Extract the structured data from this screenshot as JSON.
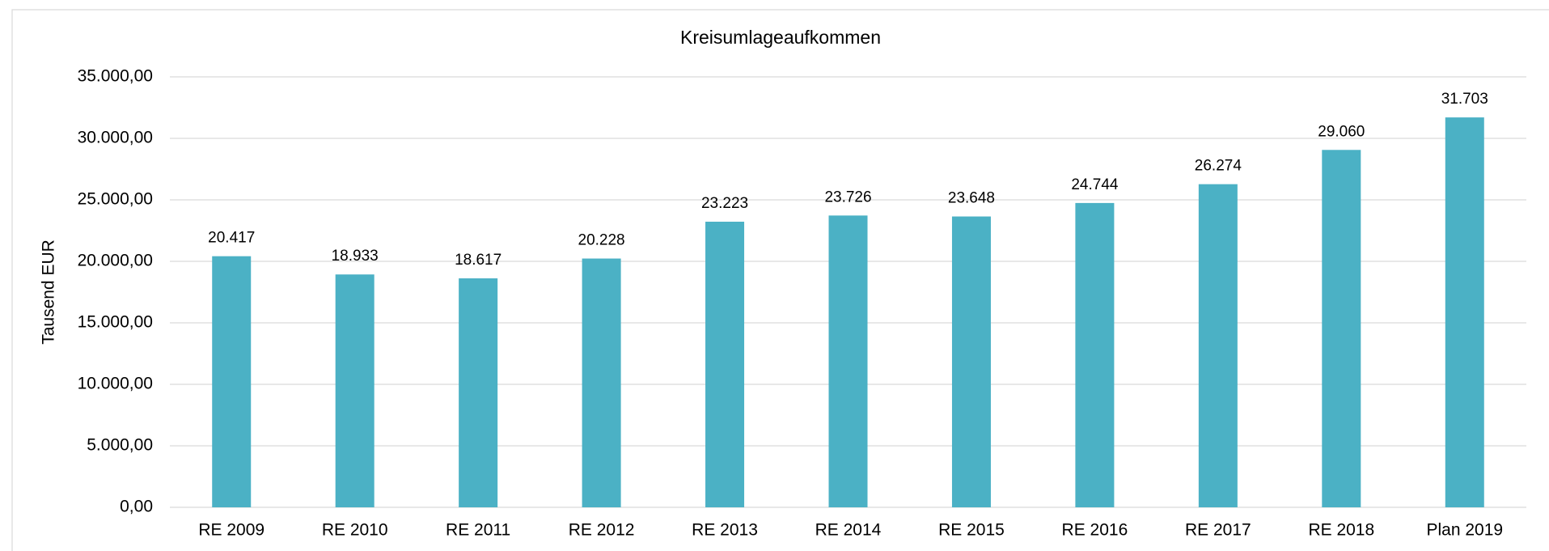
{
  "chart_data": {
    "type": "bar",
    "title": "Kreisumlageaufkommen",
    "y_label": "Tausend EUR",
    "categories": [
      "RE 2009",
      "RE 2010",
      "RE 2011",
      "RE 2012",
      "RE 2013",
      "RE 2014",
      "RE 2015",
      "RE 2016",
      "RE 2017",
      "RE 2018",
      "Plan 2019"
    ],
    "values": [
      20417,
      18933,
      18617,
      20228,
      23223,
      23726,
      23648,
      24744,
      26274,
      29060,
      31703
    ],
    "value_labels": [
      "20.417",
      "18.933",
      "18.617",
      "20.228",
      "23.223",
      "23.726",
      "23.648",
      "24.744",
      "26.274",
      "29.060",
      "31.703"
    ],
    "color": "#4bb1c5",
    "ylim": [
      0,
      35000
    ],
    "yticks": [
      {
        "value": 0,
        "label": "0,00"
      },
      {
        "value": 5000,
        "label": "5.000,00"
      },
      {
        "value": 10000,
        "label": "10.000,00"
      },
      {
        "value": 15000,
        "label": "15.000,00"
      },
      {
        "value": 20000,
        "label": "20.000,00"
      },
      {
        "value": 25000,
        "label": "25.000,00"
      },
      {
        "value": 30000,
        "label": "30.000,00"
      },
      {
        "value": 35000,
        "label": "35.000,00"
      }
    ],
    "grid": true
  }
}
